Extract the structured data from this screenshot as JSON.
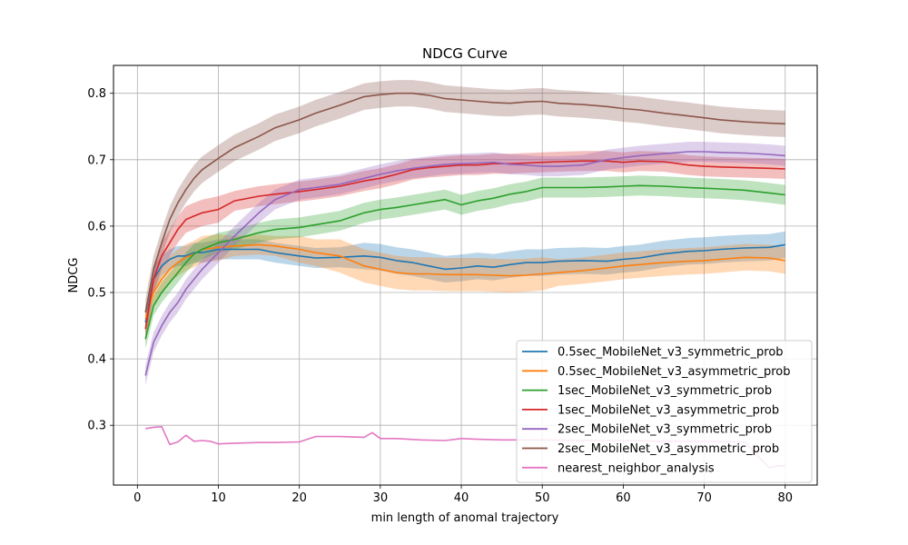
{
  "chart_data": {
    "type": "line",
    "title": "NDCG Curve",
    "xlabel": "min length of anomal trajectory",
    "ylabel": "NDCG",
    "xlim": [
      -2.95,
      83.95
    ],
    "ylim": [
      0.21,
      0.842
    ],
    "xticks": [
      0,
      10,
      20,
      30,
      40,
      50,
      60,
      70,
      80
    ],
    "yticks": [
      0.3,
      0.4,
      0.5,
      0.6,
      0.7,
      0.8
    ],
    "grid": true,
    "legend_position": "lower right",
    "series": [
      {
        "name": "0.5sec_MobileNet_v3_symmetric_prob",
        "color": "#1f77b4",
        "x": [
          1,
          2,
          3,
          4,
          5,
          6,
          7,
          8,
          10,
          12,
          15,
          17,
          20,
          22,
          25,
          28,
          30,
          32,
          34,
          36,
          38,
          40,
          42,
          44,
          46,
          48,
          50,
          52,
          55,
          58,
          60,
          62,
          65,
          68,
          70,
          72,
          75,
          78,
          80
        ],
        "y": [
          0.455,
          0.52,
          0.54,
          0.55,
          0.555,
          0.555,
          0.56,
          0.56,
          0.565,
          0.565,
          0.565,
          0.56,
          0.555,
          0.552,
          0.553,
          0.555,
          0.553,
          0.548,
          0.545,
          0.54,
          0.535,
          0.537,
          0.54,
          0.538,
          0.542,
          0.545,
          0.545,
          0.547,
          0.548,
          0.547,
          0.55,
          0.552,
          0.558,
          0.562,
          0.563,
          0.565,
          0.567,
          0.568,
          0.572
        ],
        "band": [
          0.02,
          0.02,
          0.015,
          0.015,
          0.015,
          0.015,
          0.015,
          0.015,
          0.015,
          0.015,
          0.015,
          0.015,
          0.015,
          0.015,
          0.015,
          0.02,
          0.02,
          0.02,
          0.02,
          0.02,
          0.02,
          0.02,
          0.02,
          0.02,
          0.02,
          0.02,
          0.02,
          0.02,
          0.02,
          0.02,
          0.02,
          0.02,
          0.02,
          0.02,
          0.02,
          0.02,
          0.02,
          0.02,
          0.02
        ]
      },
      {
        "name": "0.5sec_MobileNet_v3_asymmetric_prob",
        "color": "#ff7f0e",
        "x": [
          1,
          2,
          3,
          4,
          5,
          6,
          7,
          8,
          10,
          12,
          15,
          17,
          20,
          22,
          25,
          28,
          30,
          32,
          34,
          36,
          38,
          40,
          42,
          44,
          46,
          48,
          50,
          52,
          55,
          58,
          60,
          62,
          65,
          68,
          70,
          72,
          75,
          78,
          80
        ],
        "y": [
          0.46,
          0.5,
          0.52,
          0.535,
          0.545,
          0.553,
          0.558,
          0.565,
          0.568,
          0.57,
          0.572,
          0.57,
          0.565,
          0.56,
          0.555,
          0.54,
          0.535,
          0.53,
          0.528,
          0.528,
          0.527,
          0.527,
          0.527,
          0.526,
          0.525,
          0.526,
          0.528,
          0.53,
          0.533,
          0.537,
          0.54,
          0.542,
          0.545,
          0.547,
          0.548,
          0.55,
          0.553,
          0.552,
          0.548
        ],
        "band": [
          0.02,
          0.02,
          0.02,
          0.02,
          0.02,
          0.02,
          0.02,
          0.02,
          0.02,
          0.015,
          0.015,
          0.015,
          0.02,
          0.02,
          0.025,
          0.025,
          0.025,
          0.025,
          0.025,
          0.025,
          0.025,
          0.025,
          0.025,
          0.025,
          0.025,
          0.025,
          0.025,
          0.02,
          0.02,
          0.02,
          0.02,
          0.02,
          0.02,
          0.02,
          0.02,
          0.02,
          0.02,
          0.02,
          0.02
        ]
      },
      {
        "name": "1sec_MobileNet_v3_symmetric_prob",
        "color": "#2ca02c",
        "x": [
          1,
          2,
          3,
          4,
          5,
          6,
          7,
          8,
          10,
          12,
          15,
          17,
          20,
          22,
          25,
          28,
          30,
          32,
          34,
          36,
          38,
          40,
          42,
          44,
          46,
          48,
          50,
          52,
          55,
          58,
          60,
          62,
          65,
          68,
          70,
          72,
          75,
          78,
          80
        ],
        "y": [
          0.43,
          0.48,
          0.5,
          0.515,
          0.53,
          0.545,
          0.558,
          0.565,
          0.575,
          0.58,
          0.59,
          0.595,
          0.598,
          0.602,
          0.608,
          0.62,
          0.625,
          0.628,
          0.632,
          0.636,
          0.64,
          0.632,
          0.638,
          0.642,
          0.648,
          0.652,
          0.658,
          0.658,
          0.658,
          0.659,
          0.66,
          0.661,
          0.66,
          0.658,
          0.657,
          0.656,
          0.654,
          0.65,
          0.647
        ],
        "band": [
          0.015,
          0.015,
          0.015,
          0.015,
          0.015,
          0.015,
          0.015,
          0.015,
          0.015,
          0.015,
          0.015,
          0.015,
          0.015,
          0.015,
          0.015,
          0.015,
          0.015,
          0.015,
          0.015,
          0.015,
          0.015,
          0.015,
          0.015,
          0.015,
          0.015,
          0.015,
          0.015,
          0.015,
          0.015,
          0.015,
          0.015,
          0.015,
          0.015,
          0.015,
          0.015,
          0.015,
          0.015,
          0.015,
          0.015
        ]
      },
      {
        "name": "1sec_MobileNet_v3_asymmetric_prob",
        "color": "#d62728",
        "x": [
          1,
          2,
          3,
          4,
          5,
          6,
          7,
          8,
          10,
          12,
          15,
          17,
          20,
          22,
          25,
          28,
          30,
          32,
          34,
          36,
          38,
          40,
          42,
          44,
          46,
          48,
          50,
          52,
          55,
          58,
          60,
          62,
          65,
          68,
          70,
          72,
          75,
          78,
          80
        ],
        "y": [
          0.445,
          0.52,
          0.555,
          0.575,
          0.595,
          0.61,
          0.615,
          0.62,
          0.625,
          0.638,
          0.645,
          0.648,
          0.652,
          0.655,
          0.66,
          0.668,
          0.672,
          0.678,
          0.685,
          0.688,
          0.69,
          0.692,
          0.692,
          0.694,
          0.694,
          0.695,
          0.696,
          0.697,
          0.698,
          0.698,
          0.696,
          0.698,
          0.697,
          0.692,
          0.69,
          0.689,
          0.688,
          0.687,
          0.686
        ],
        "band": [
          0.02,
          0.02,
          0.02,
          0.02,
          0.02,
          0.02,
          0.02,
          0.02,
          0.02,
          0.015,
          0.015,
          0.015,
          0.015,
          0.015,
          0.015,
          0.015,
          0.015,
          0.015,
          0.015,
          0.015,
          0.015,
          0.015,
          0.015,
          0.015,
          0.015,
          0.015,
          0.015,
          0.015,
          0.015,
          0.015,
          0.015,
          0.015,
          0.015,
          0.015,
          0.015,
          0.015,
          0.015,
          0.015,
          0.015
        ]
      },
      {
        "name": "2sec_MobileNet_v3_symmetric_prob",
        "color": "#9467bd",
        "x": [
          1,
          2,
          3,
          4,
          5,
          6,
          7,
          8,
          10,
          12,
          15,
          17,
          20,
          22,
          25,
          28,
          30,
          32,
          34,
          36,
          38,
          40,
          42,
          44,
          46,
          48,
          50,
          52,
          55,
          58,
          60,
          62,
          65,
          68,
          70,
          72,
          75,
          78,
          80
        ],
        "y": [
          0.375,
          0.425,
          0.45,
          0.47,
          0.485,
          0.505,
          0.52,
          0.535,
          0.56,
          0.585,
          0.62,
          0.64,
          0.655,
          0.658,
          0.663,
          0.672,
          0.678,
          0.683,
          0.687,
          0.69,
          0.693,
          0.694,
          0.695,
          0.696,
          0.693,
          0.692,
          0.69,
          0.69,
          0.692,
          0.7,
          0.703,
          0.706,
          0.709,
          0.712,
          0.712,
          0.711,
          0.71,
          0.708,
          0.706
        ],
        "band": [
          0.015,
          0.015,
          0.015,
          0.015,
          0.015,
          0.015,
          0.015,
          0.015,
          0.015,
          0.015,
          0.015,
          0.015,
          0.015,
          0.015,
          0.015,
          0.015,
          0.015,
          0.015,
          0.015,
          0.015,
          0.015,
          0.015,
          0.015,
          0.015,
          0.015,
          0.015,
          0.015,
          0.015,
          0.015,
          0.015,
          0.015,
          0.015,
          0.015,
          0.015,
          0.015,
          0.015,
          0.015,
          0.015,
          0.015
        ]
      },
      {
        "name": "2sec_MobileNet_v3_asymmetric_prob",
        "color": "#8c564b",
        "x": [
          1,
          2,
          3,
          4,
          5,
          6,
          7,
          8,
          10,
          12,
          15,
          17,
          20,
          22,
          25,
          28,
          30,
          32,
          34,
          36,
          38,
          40,
          42,
          44,
          46,
          48,
          50,
          52,
          55,
          58,
          60,
          62,
          65,
          68,
          70,
          72,
          75,
          78,
          80
        ],
        "y": [
          0.47,
          0.535,
          0.575,
          0.61,
          0.635,
          0.655,
          0.672,
          0.685,
          0.702,
          0.718,
          0.735,
          0.748,
          0.76,
          0.77,
          0.782,
          0.795,
          0.798,
          0.8,
          0.8,
          0.797,
          0.792,
          0.79,
          0.788,
          0.786,
          0.785,
          0.787,
          0.788,
          0.785,
          0.783,
          0.78,
          0.777,
          0.775,
          0.77,
          0.766,
          0.763,
          0.76,
          0.757,
          0.755,
          0.754
        ],
        "band": [
          0.02,
          0.02,
          0.02,
          0.02,
          0.02,
          0.02,
          0.02,
          0.02,
          0.02,
          0.02,
          0.02,
          0.02,
          0.02,
          0.02,
          0.02,
          0.02,
          0.02,
          0.02,
          0.02,
          0.02,
          0.02,
          0.02,
          0.02,
          0.02,
          0.02,
          0.02,
          0.02,
          0.02,
          0.02,
          0.02,
          0.02,
          0.02,
          0.02,
          0.02,
          0.02,
          0.02,
          0.02,
          0.02,
          0.02
        ]
      },
      {
        "name": "nearest_neighbor_analysis",
        "color": "#e377c2",
        "x": [
          1,
          2,
          3,
          4,
          5,
          6,
          7,
          8,
          9,
          10,
          12,
          15,
          17,
          20,
          22,
          25,
          28,
          29,
          30,
          32,
          35,
          38,
          40,
          42,
          45,
          48,
          50,
          55,
          60,
          65,
          70,
          75,
          78,
          79,
          80
        ],
        "y": [
          0.295,
          0.297,
          0.298,
          0.271,
          0.275,
          0.285,
          0.276,
          0.277,
          0.276,
          0.272,
          0.273,
          0.274,
          0.274,
          0.275,
          0.283,
          0.283,
          0.282,
          0.289,
          0.28,
          0.28,
          0.278,
          0.277,
          0.28,
          0.279,
          0.278,
          0.278,
          0.278,
          0.277,
          0.277,
          0.276,
          0.276,
          0.275,
          0.236,
          0.239,
          0.239
        ],
        "band": []
      }
    ]
  }
}
